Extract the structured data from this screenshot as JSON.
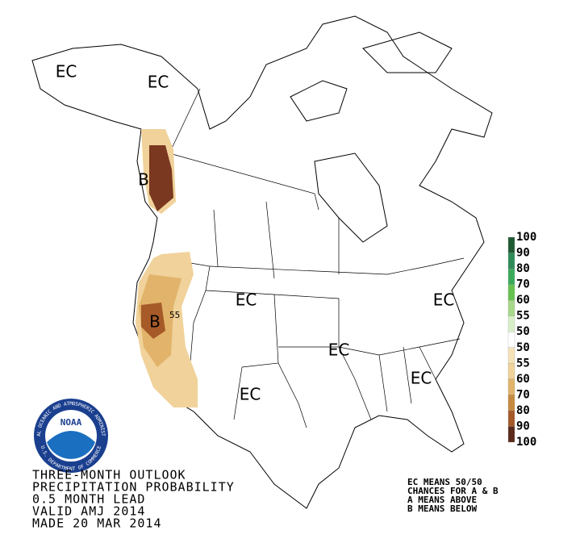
{
  "map": {
    "labels": [
      "EC",
      "EC",
      "B",
      "EC",
      "EC",
      "B",
      "EC",
      "EC",
      "EC"
    ],
    "contour_labels": [
      "55"
    ]
  },
  "logo": {
    "ring_top": "NATIONAL OCEANIC AND ATMOSPHERIC ADMINISTRATION",
    "ring_bottom": "U.S. DEPARTMENT OF COMMERCE",
    "name": "NOAA"
  },
  "title_lines": [
    "THREE-MONTH OUTLOOK",
    "PRECIPITATION PROBABILITY",
    "0.5 MONTH LEAD",
    "VALID AMJ 2014",
    "MADE 20 MAR 2014"
  ],
  "notes": [
    "EC MEANS 50/50",
    "CHANCES FOR A & B",
    "A MEANS ABOVE",
    "B MEANS BELOW"
  ],
  "legend": {
    "labels": [
      100,
      90,
      80,
      70,
      60,
      55,
      50,
      50,
      55,
      60,
      70,
      80,
      90,
      100
    ],
    "colors": [
      "#1e5a32",
      "#2e8b57",
      "#3aaa5a",
      "#66c24f",
      "#a8d88a",
      "#d8efc8",
      "#ffffff",
      "#f5e3b8",
      "#f0d29a",
      "#e2b36a",
      "#c68a40",
      "#a65a28",
      "#5a2a1a"
    ]
  }
}
